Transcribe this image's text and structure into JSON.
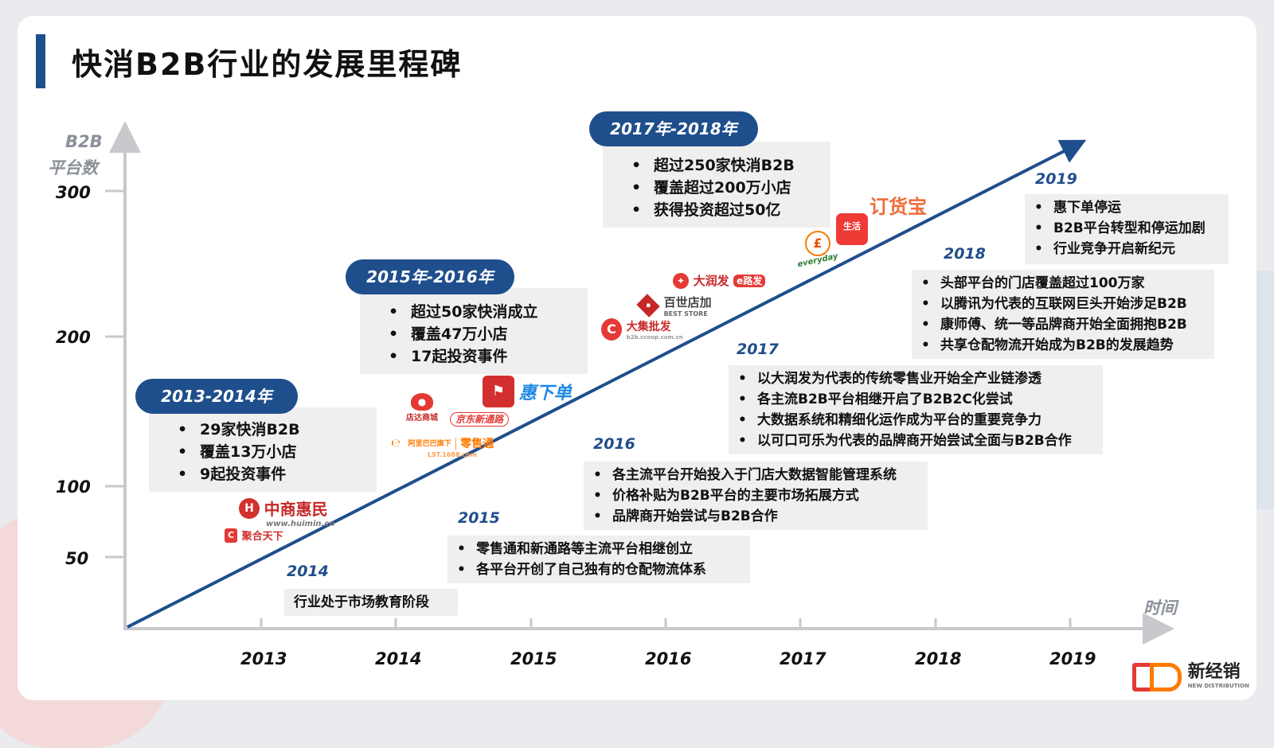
{
  "title": "快消B2B行业的发展里程碑",
  "y_axis": {
    "label_line1": "B2B",
    "label_line2": "平台数",
    "ticks": [
      "300",
      "200",
      "100",
      "50"
    ]
  },
  "x_axis": {
    "label": "时间",
    "ticks": [
      "2013",
      "2014",
      "2015",
      "2016",
      "2017",
      "2018",
      "2019"
    ]
  },
  "eras": [
    {
      "label": "2013-2014年",
      "items": [
        "29家快消B2B",
        "覆盖13万小店",
        "9起投资事件"
      ]
    },
    {
      "label": "2015年-2016年",
      "items": [
        "超过50家快消成立",
        "覆盖47万小店",
        "17起投资事件"
      ]
    },
    {
      "label": "2017年-2018年",
      "items": [
        "超过250家快消B2B",
        "覆盖超过200万小店",
        "获得投资超过50亿"
      ]
    }
  ],
  "milestones": [
    {
      "year": "2014",
      "items": [
        "行业处于市场教育阶段"
      ]
    },
    {
      "year": "2015",
      "items": [
        "零售通和新通路等主流平台相继创立",
        "各平台开创了自己独有的仓配物流体系"
      ]
    },
    {
      "year": "2016",
      "items": [
        "各主流平台开始投入于门店大数据智能管理系统",
        "价格补贴为B2B平台的主要市场拓展方式",
        "品牌商开始尝试与B2B合作"
      ]
    },
    {
      "year": "2017",
      "items": [
        "以大润发为代表的传统零售业开始全产业链渗透",
        "各主流B2B平台相继开启了B2B2C化尝试",
        "大数据系统和精细化运作成为平台的重要竞争力",
        "以可口可乐为代表的品牌商开始尝试全面与B2B合作"
      ]
    },
    {
      "year": "2018",
      "items": [
        "头部平台的门店覆盖超过100万家",
        "以腾讯为代表的互联网巨头开始涉足B2B",
        "康师傅、统一等品牌商开始全面拥抱B2B",
        "共享仓配物流开始成为B2B的发展趋势"
      ]
    },
    {
      "year": "2019",
      "items": [
        "惠下单停运",
        "B2B平台转型和停运加剧",
        "行业竞争开启新纪元"
      ]
    }
  ],
  "logos": {
    "huimin": {
      "name": "中商惠民",
      "url": "www.huimin.cn"
    },
    "juhui": {
      "name": "聚合天下"
    },
    "diandian": {
      "name": "店达商城"
    },
    "jd": {
      "name": "京东新通路"
    },
    "lst": {
      "name": "零售通",
      "sub": "阿里巴巴旗下",
      "url": "LST.1688.com"
    },
    "huixiadan": {
      "name": "惠下单"
    },
    "daji": {
      "name": "大集批发",
      "url": "b2b.ccoop.com.cn"
    },
    "best": {
      "name": "百世店加",
      "sub": "BEST STORE"
    },
    "rtmart": {
      "name": "大润发",
      "sub": "e路发"
    },
    "everyday": {
      "name": "everyday"
    },
    "yisheng": {
      "name": "生活"
    },
    "dinghuobao": {
      "name": "订货宝"
    },
    "brand": {
      "name": "新经销",
      "sub": "NEW DISTRIBUTION"
    }
  },
  "colors": {
    "primary": "#1f4e8c",
    "box_bg": "#efefef",
    "axis": "#c7c9cd"
  }
}
